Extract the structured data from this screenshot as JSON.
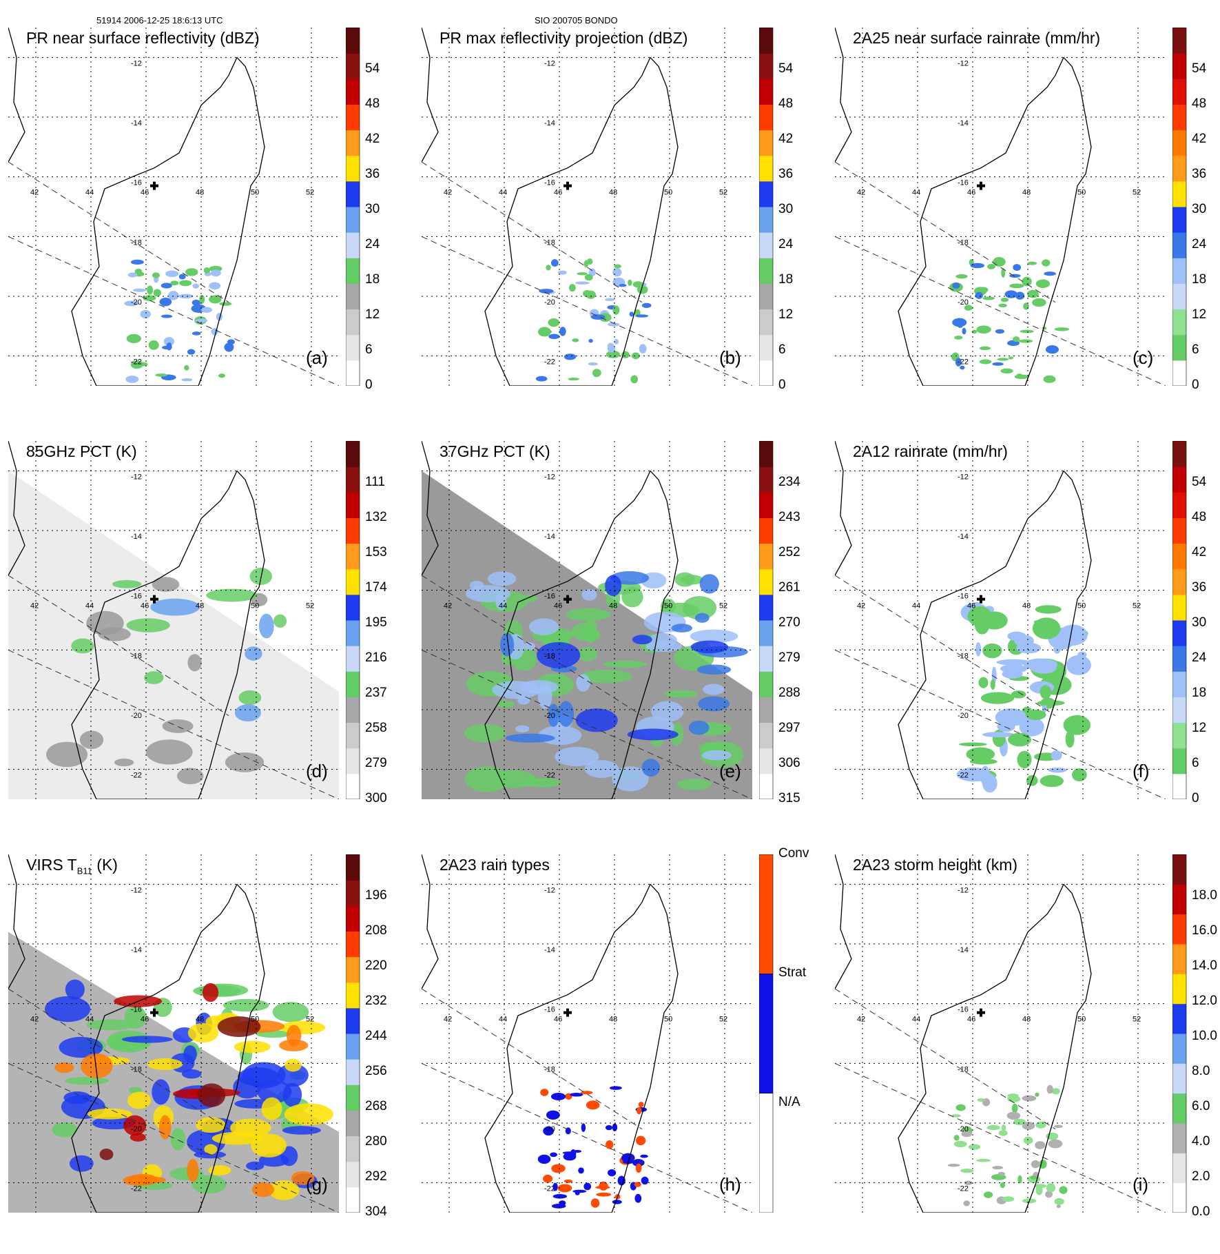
{
  "header": {
    "left": "51914 2006-12-25 18:6:13 UTC",
    "center": "SIO 200705 BONDO"
  },
  "map": {
    "lon_ticks": [
      "42",
      "44",
      "46",
      "48",
      "50",
      "52"
    ],
    "lat_ticks": [
      "-12",
      "-14",
      "-16",
      "-18",
      "-20",
      "-22"
    ],
    "storm_marker": "black-cross-icon"
  },
  "panels": [
    {
      "id": "a",
      "title": "PR near surface reflectivity (dBZ)",
      "label": "(a)",
      "colorbar": {
        "labels": [
          "0",
          "6",
          "12",
          "18",
          "24",
          "30",
          "36",
          "42",
          "48",
          "54"
        ]
      }
    },
    {
      "id": "b",
      "title": "PR max reflectivity projection (dBZ)",
      "label": "(b)",
      "colorbar": {
        "labels": [
          "0",
          "6",
          "12",
          "18",
          "24",
          "30",
          "36",
          "42",
          "48",
          "54"
        ]
      }
    },
    {
      "id": "c",
      "title": "2A25 near surface rainrate (mm/hr)",
      "label": "(c)",
      "colorbar": {
        "labels": [
          "0",
          "6",
          "12",
          "18",
          "24",
          "30",
          "36",
          "42",
          "48",
          "54"
        ]
      }
    },
    {
      "id": "d",
      "title": "85GHz PCT (K)",
      "label": "(d)",
      "colorbar": {
        "labels": [
          "300",
          "279",
          "258",
          "237",
          "216",
          "195",
          "174",
          "153",
          "132",
          "111"
        ]
      }
    },
    {
      "id": "e",
      "title": "37GHz PCT (K)",
      "label": "(e)",
      "colorbar": {
        "labels": [
          "315",
          "306",
          "297",
          "288",
          "279",
          "270",
          "261",
          "252",
          "243",
          "234"
        ]
      }
    },
    {
      "id": "f",
      "title": "2A12 rainrate (mm/hr)",
      "label": "(f)",
      "colorbar": {
        "labels": [
          "0",
          "6",
          "12",
          "18",
          "24",
          "30",
          "36",
          "42",
          "48",
          "54"
        ]
      }
    },
    {
      "id": "g",
      "title_main": "VIRS T",
      "title_sub": "B11",
      "title_unit": " (K)",
      "label": "(g)",
      "colorbar": {
        "labels": [
          "304",
          "292",
          "280",
          "268",
          "256",
          "244",
          "232",
          "220",
          "208",
          "196"
        ]
      }
    },
    {
      "id": "h",
      "title": "2A23 rain types",
      "label": "(h)",
      "colorbar": {
        "labels": [
          "N/A",
          "Strat",
          "Conv"
        ]
      }
    },
    {
      "id": "i",
      "title": "2A23 storm height (km)",
      "label": "(i)",
      "colorbar": {
        "labels": [
          "0.0",
          "2.0",
          "4.0",
          "6.0",
          "8.0",
          "10.0",
          "12.0",
          "14.0",
          "16.0",
          "18.0"
        ]
      }
    }
  ],
  "chart_data": {
    "type": "heatmap",
    "lon_range": [
      41,
      53
    ],
    "lat_range": [
      -23,
      -11
    ],
    "storm_center": {
      "lon": 46.3,
      "lat": -16.3
    },
    "swath_edges": "dashed",
    "colorbar_colors": [
      "#ffffff",
      "#e6e6e6",
      "#cccccc",
      "#b0b0b0",
      "#8fe08f",
      "#66cc66",
      "#c8d8f8",
      "#9fc0f8",
      "#6aa2f0",
      "#3a78e8",
      "#1d3cf0",
      "#0b10d8",
      "#ffe000",
      "#fff040",
      "#ff9a1a",
      "#ff7a00",
      "#ff3c00",
      "#e01000",
      "#c00000",
      "#a00000",
      "#7a1010",
      "#5a0a0a"
    ],
    "rain_type_colors": {
      "N/A": "#ffffff",
      "Strat": "#1010e8",
      "Conv": "#ff4a00"
    }
  }
}
